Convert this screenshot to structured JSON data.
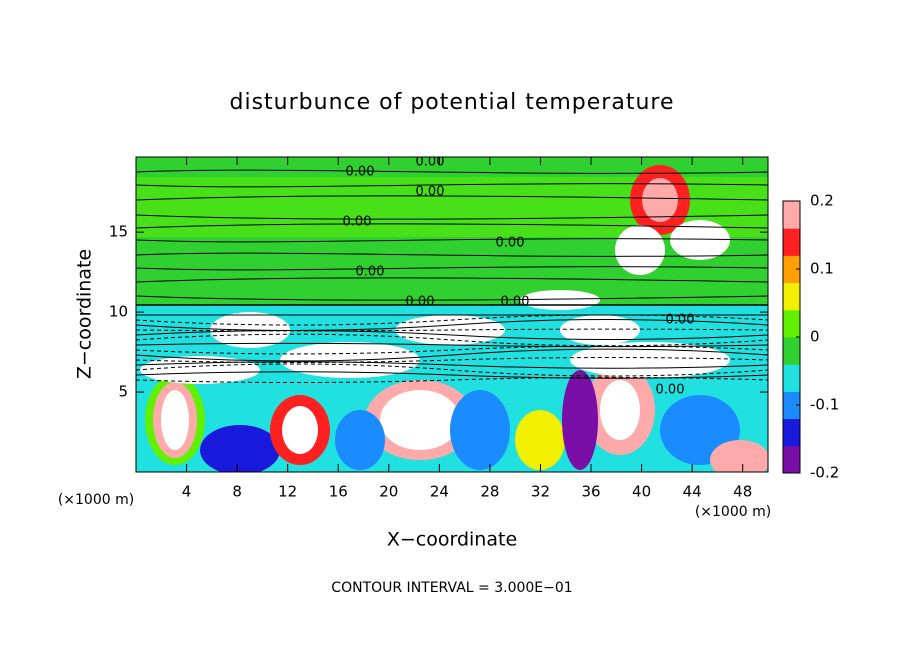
{
  "chart_data": {
    "type": "contour",
    "title": "disturbunce of potential temperature",
    "x_label": "X−coordinate",
    "y_label": "Z−coordinate",
    "x_unit_label": "(×1000 m)",
    "footer": "CONTOUR INTERVAL = 3.000E−01",
    "xlim": [
      0,
      50
    ],
    "xticks": [
      4,
      8,
      12,
      16,
      20,
      24,
      28,
      32,
      36,
      40,
      44,
      48
    ],
    "ylim": [
      0,
      19.7
    ],
    "yticks": [
      5,
      10,
      15
    ],
    "colorbar": {
      "lim": [
        -0.2,
        0.2
      ],
      "ticks": [
        0.2,
        0.1,
        0,
        -0.1,
        -0.2
      ],
      "colors": [
        "#7a0fa8",
        "#1a1adc",
        "#1a8cff",
        "#20e0e0",
        "#30d030",
        "#60f000",
        "#f0f000",
        "#ffa000",
        "#ff2020",
        "#ffaaaa"
      ]
    },
    "contour_labels": [
      "0.00",
      "0.00",
      "0.00",
      "0.00",
      "0.00",
      "0.00",
      "0.00",
      "0.00",
      "0.00",
      "0.00"
    ]
  }
}
